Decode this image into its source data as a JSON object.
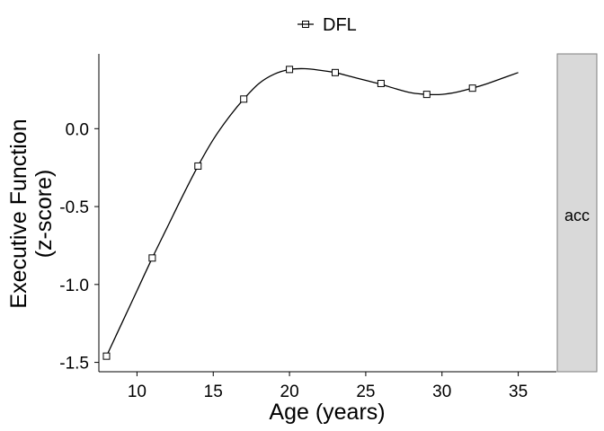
{
  "chart_data": {
    "type": "line",
    "title": "",
    "xlabel": "Age (years)",
    "ylabel_lines": [
      "Executive Function",
      "(z-score)"
    ],
    "xlim": [
      7.5,
      37.5
    ],
    "ylim": [
      -1.56,
      0.48
    ],
    "x_ticks": [
      10,
      15,
      20,
      25,
      30,
      35
    ],
    "y_ticks": [
      0.0,
      -0.5,
      -1.0,
      -1.5
    ],
    "y_tick_labels": [
      "0.0",
      "-0.5",
      "-1.0",
      "-1.5"
    ],
    "grid": false,
    "legend_position": "top",
    "facet_label": "acc",
    "colors": {
      "line": "#000000",
      "strip_fill": "#d9d9d9",
      "strip_border": "#7f7f7f"
    },
    "series": [
      {
        "name": "DFL",
        "marker": "square-open",
        "points": {
          "x": [
            8,
            11,
            14,
            17,
            20,
            23,
            26,
            29,
            32
          ],
          "y": [
            -1.46,
            -0.83,
            -0.24,
            0.19,
            0.38,
            0.36,
            0.29,
            0.22,
            0.26
          ]
        },
        "curve": {
          "x": [
            8,
            9,
            10,
            11,
            12,
            13,
            14,
            15,
            16,
            17,
            18,
            19,
            20,
            21,
            22,
            23,
            24,
            25,
            26,
            27,
            28,
            29,
            30,
            31,
            32,
            33,
            34,
            35
          ],
          "y": [
            -1.46,
            -1.25,
            -1.04,
            -0.83,
            -0.63,
            -0.43,
            -0.24,
            -0.07,
            0.07,
            0.19,
            0.29,
            0.35,
            0.38,
            0.385,
            0.375,
            0.36,
            0.335,
            0.31,
            0.285,
            0.255,
            0.23,
            0.22,
            0.22,
            0.235,
            0.26,
            0.29,
            0.325,
            0.36
          ]
        }
      }
    ]
  }
}
